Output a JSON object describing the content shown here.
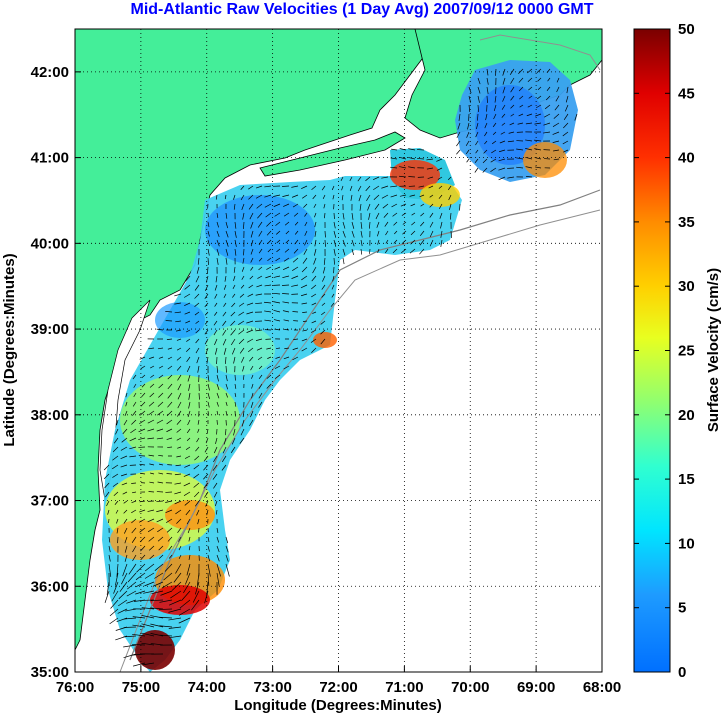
{
  "title": "Mid-Atlantic Raw Velocities (1 Day Avg) 2007/09/12 0000 GMT",
  "x_axis": {
    "label": "Longitude (Degrees:Minutes)",
    "ticks": [
      "76:00",
      "75:00",
      "74:00",
      "73:00",
      "72:00",
      "71:00",
      "70:00",
      "69:00",
      "68:00"
    ]
  },
  "y_axis": {
    "label": "Latitude (Degrees:Minutes)",
    "ticks": [
      "35:00",
      "36:00",
      "37:00",
      "38:00",
      "39:00",
      "40:00",
      "41:00",
      "42:00"
    ]
  },
  "colorbar": {
    "label": "Surface Velocity (cm/s)",
    "ticks": [
      "0",
      "5",
      "10",
      "15",
      "20",
      "25",
      "30",
      "35",
      "40",
      "45",
      "50"
    ],
    "range": [
      0,
      50
    ]
  },
  "map": {
    "lon_range": [
      -76,
      -68
    ],
    "lat_range": [
      35,
      42.5
    ],
    "land_color": "#44ee99",
    "grid": true
  }
}
